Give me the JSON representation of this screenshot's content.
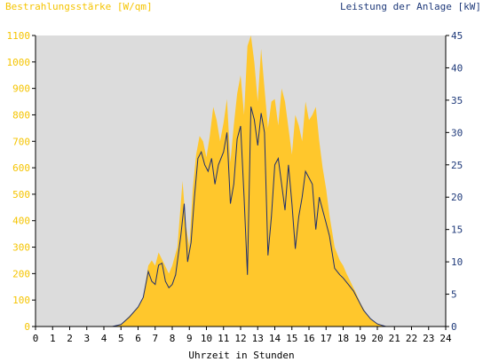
{
  "chart_data": {
    "type": "area",
    "title_left": "Bestrahlungsstärke [W/qm]",
    "title_right": "Leistung der Anlage [kW]",
    "xlabel": "Uhrzeit in Stunden",
    "xlim": [
      0,
      24
    ],
    "x_ticks": [
      0,
      1,
      2,
      3,
      4,
      5,
      6,
      7,
      8,
      9,
      10,
      11,
      12,
      13,
      14,
      15,
      16,
      17,
      18,
      19,
      20,
      21,
      22,
      23,
      24
    ],
    "y_left": {
      "lim": [
        0,
        1100
      ],
      "ticks": [
        0,
        100,
        200,
        300,
        400,
        500,
        600,
        700,
        800,
        900,
        1000,
        1100
      ]
    },
    "y_right": {
      "lim": [
        0,
        45
      ],
      "ticks": [
        0,
        5,
        10,
        15,
        20,
        25,
        30,
        35,
        40,
        45
      ]
    },
    "grid": false,
    "colors": {
      "irradiance": "#ffc72c",
      "power": "#1f2f6e",
      "plot_bg": "#dcdcdc",
      "left_axis_text": "#f5c400",
      "right_axis_text": "#1f3a7a"
    },
    "series": [
      {
        "name": "Bestrahlungsstärke [W/qm]",
        "axis": "left",
        "points": [
          [
            0,
            0
          ],
          [
            4.5,
            0
          ],
          [
            5.0,
            8
          ],
          [
            5.5,
            40
          ],
          [
            6.0,
            75
          ],
          [
            6.3,
            110
          ],
          [
            6.6,
            230
          ],
          [
            6.8,
            250
          ],
          [
            7.0,
            230
          ],
          [
            7.2,
            280
          ],
          [
            7.5,
            240
          ],
          [
            7.8,
            200
          ],
          [
            8.0,
            230
          ],
          [
            8.3,
            300
          ],
          [
            8.6,
            550
          ],
          [
            8.8,
            380
          ],
          [
            9.0,
            300
          ],
          [
            9.2,
            520
          ],
          [
            9.4,
            650
          ],
          [
            9.6,
            720
          ],
          [
            9.8,
            700
          ],
          [
            10.0,
            640
          ],
          [
            10.2,
            720
          ],
          [
            10.4,
            830
          ],
          [
            10.6,
            780
          ],
          [
            10.8,
            700
          ],
          [
            11.0,
            770
          ],
          [
            11.2,
            860
          ],
          [
            11.4,
            620
          ],
          [
            11.6,
            760
          ],
          [
            11.8,
            880
          ],
          [
            12.0,
            950
          ],
          [
            12.2,
            800
          ],
          [
            12.4,
            1060
          ],
          [
            12.6,
            1100
          ],
          [
            12.8,
            1000
          ],
          [
            13.0,
            850
          ],
          [
            13.2,
            1050
          ],
          [
            13.4,
            900
          ],
          [
            13.6,
            750
          ],
          [
            13.8,
            850
          ],
          [
            14.0,
            860
          ],
          [
            14.2,
            760
          ],
          [
            14.4,
            900
          ],
          [
            14.6,
            850
          ],
          [
            14.8,
            750
          ],
          [
            15.0,
            650
          ],
          [
            15.2,
            800
          ],
          [
            15.4,
            760
          ],
          [
            15.6,
            700
          ],
          [
            15.8,
            850
          ],
          [
            16.0,
            780
          ],
          [
            16.2,
            800
          ],
          [
            16.4,
            830
          ],
          [
            16.6,
            700
          ],
          [
            16.8,
            600
          ],
          [
            17.0,
            520
          ],
          [
            17.2,
            420
          ],
          [
            17.5,
            300
          ],
          [
            17.8,
            250
          ],
          [
            18.0,
            230
          ],
          [
            18.2,
            200
          ],
          [
            18.5,
            160
          ],
          [
            18.8,
            120
          ],
          [
            19.0,
            90
          ],
          [
            19.3,
            55
          ],
          [
            19.6,
            30
          ],
          [
            20.0,
            10
          ],
          [
            20.4,
            2
          ],
          [
            21.0,
            0
          ],
          [
            24,
            0
          ]
        ]
      },
      {
        "name": "Leistung der Anlage [kW]",
        "axis": "right",
        "points": [
          [
            0,
            0
          ],
          [
            4.5,
            0
          ],
          [
            5.0,
            0.3
          ],
          [
            5.5,
            1.5
          ],
          [
            6.0,
            3.0
          ],
          [
            6.3,
            4.5
          ],
          [
            6.6,
            8.5
          ],
          [
            6.8,
            7.0
          ],
          [
            7.0,
            6.5
          ],
          [
            7.2,
            9.5
          ],
          [
            7.4,
            9.8
          ],
          [
            7.6,
            7.0
          ],
          [
            7.8,
            6.0
          ],
          [
            8.0,
            6.5
          ],
          [
            8.2,
            8.0
          ],
          [
            8.5,
            14.0
          ],
          [
            8.7,
            19.0
          ],
          [
            8.9,
            10.0
          ],
          [
            9.1,
            13.0
          ],
          [
            9.3,
            20.0
          ],
          [
            9.5,
            26.0
          ],
          [
            9.7,
            27.0
          ],
          [
            9.9,
            25.0
          ],
          [
            10.1,
            24.0
          ],
          [
            10.3,
            26.0
          ],
          [
            10.5,
            22.0
          ],
          [
            10.7,
            25.0
          ],
          [
            11.0,
            27.0
          ],
          [
            11.2,
            30.0
          ],
          [
            11.4,
            19.0
          ],
          [
            11.6,
            22.0
          ],
          [
            11.8,
            29.0
          ],
          [
            12.0,
            31.0
          ],
          [
            12.2,
            20.0
          ],
          [
            12.4,
            8.0
          ],
          [
            12.6,
            34.0
          ],
          [
            12.8,
            32.0
          ],
          [
            13.0,
            28.0
          ],
          [
            13.2,
            33.0
          ],
          [
            13.4,
            30.0
          ],
          [
            13.6,
            11.0
          ],
          [
            13.8,
            17.0
          ],
          [
            14.0,
            25.0
          ],
          [
            14.2,
            26.0
          ],
          [
            14.4,
            22.0
          ],
          [
            14.6,
            18.0
          ],
          [
            14.8,
            25.0
          ],
          [
            15.0,
            19.0
          ],
          [
            15.2,
            12.0
          ],
          [
            15.4,
            17.0
          ],
          [
            15.6,
            20.0
          ],
          [
            15.8,
            24.0
          ],
          [
            16.0,
            23.0
          ],
          [
            16.2,
            22.0
          ],
          [
            16.4,
            15.0
          ],
          [
            16.6,
            20.0
          ],
          [
            16.8,
            18.0
          ],
          [
            17.0,
            16.0
          ],
          [
            17.2,
            14.0
          ],
          [
            17.5,
            9.0
          ],
          [
            17.8,
            8.0
          ],
          [
            18.0,
            7.5
          ],
          [
            18.3,
            6.5
          ],
          [
            18.6,
            5.5
          ],
          [
            18.9,
            4.0
          ],
          [
            19.2,
            2.5
          ],
          [
            19.6,
            1.2
          ],
          [
            20.0,
            0.4
          ],
          [
            20.5,
            0
          ],
          [
            24,
            0
          ]
        ]
      }
    ]
  }
}
